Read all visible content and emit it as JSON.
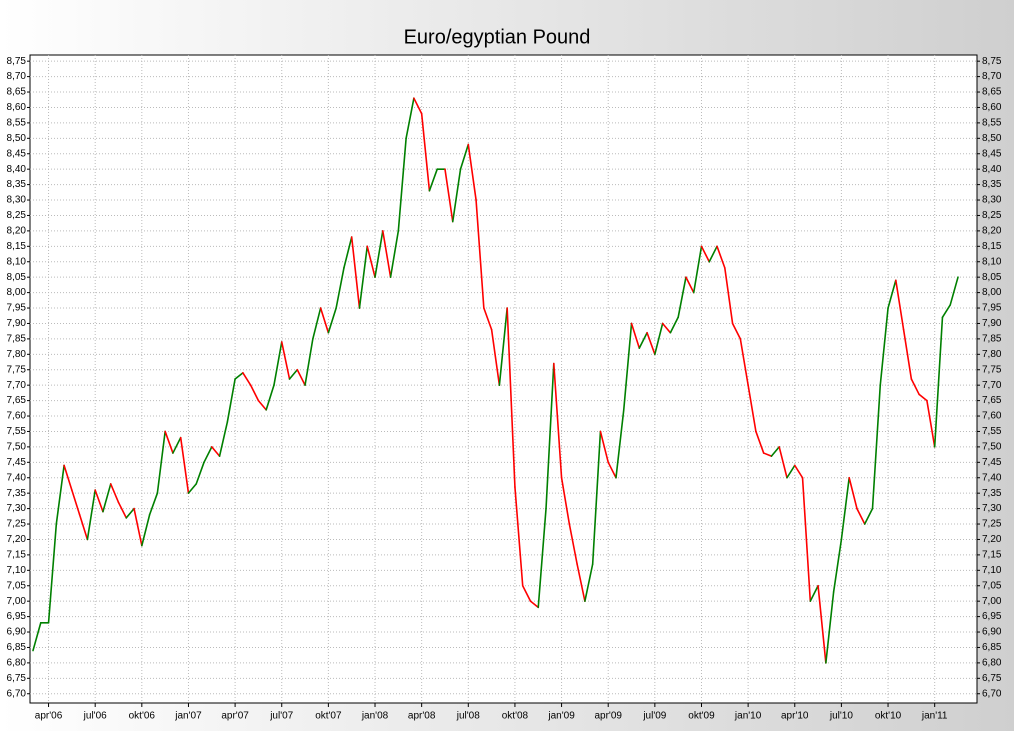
{
  "chart_data": {
    "type": "line",
    "title": "Euro/egyptian Pound",
    "categories": [
      null,
      null,
      "apr'06",
      null,
      null,
      null,
      null,
      null,
      "jul'06",
      null,
      null,
      null,
      null,
      null,
      "okt'06",
      null,
      null,
      null,
      null,
      null,
      "jan'07",
      null,
      null,
      null,
      null,
      null,
      "apr'07",
      null,
      null,
      null,
      null,
      null,
      "jul'07",
      null,
      null,
      null,
      null,
      null,
      "okt'07",
      null,
      null,
      null,
      null,
      null,
      "jan'08",
      null,
      null,
      null,
      null,
      null,
      "apr'08",
      null,
      null,
      null,
      null,
      null,
      "jul'08",
      null,
      null,
      null,
      null,
      null,
      "okt'08",
      null,
      null,
      null,
      null,
      null,
      "jan'09",
      null,
      null,
      null,
      null,
      null,
      "apr'09",
      null,
      null,
      null,
      null,
      null,
      "jul'09",
      null,
      null,
      null,
      null,
      null,
      "okt'09",
      null,
      null,
      null,
      null,
      null,
      "jan'10",
      null,
      null,
      null,
      null,
      null,
      "apr'10",
      null,
      null,
      null,
      null,
      null,
      "jul'10",
      null,
      null,
      null,
      null,
      null,
      "okt'10",
      null,
      null,
      null,
      null,
      null,
      "jan'11",
      null,
      null,
      null
    ],
    "series": [
      {
        "values": [
          6.84,
          6.93,
          6.93,
          7.25,
          7.44,
          7.36,
          7.28,
          7.2,
          7.36,
          7.29,
          7.38,
          7.32,
          7.27,
          7.3,
          7.18,
          7.28,
          7.35,
          7.55,
          7.48,
          7.53,
          7.35,
          7.38,
          7.45,
          7.5,
          7.47,
          7.58,
          7.72,
          7.74,
          7.7,
          7.65,
          7.62,
          7.7,
          7.84,
          7.72,
          7.75,
          7.7,
          7.85,
          7.95,
          7.87,
          7.95,
          8.08,
          8.18,
          7.95,
          8.15,
          8.05,
          8.2,
          8.05,
          8.2,
          8.5,
          8.63,
          8.58,
          8.33,
          8.4,
          8.4,
          8.23,
          8.4,
          8.48,
          8.3,
          7.95,
          7.88,
          7.7,
          7.95,
          7.37,
          7.05,
          7.0,
          6.98,
          7.3,
          7.77,
          7.4,
          7.25,
          7.12,
          7.0,
          7.12,
          7.55,
          7.45,
          7.4,
          7.62,
          7.9,
          7.82,
          7.87,
          7.8,
          7.9,
          7.87,
          7.92,
          8.05,
          8.0,
          8.15,
          8.1,
          8.15,
          8.08,
          7.9,
          7.85,
          7.7,
          7.55,
          7.48,
          7.47,
          7.5,
          7.4,
          7.44,
          7.4,
          7.0,
          7.05,
          6.8,
          7.03,
          7.2,
          7.4,
          7.3,
          7.25,
          7.3,
          7.7,
          7.95,
          8.04,
          7.88,
          7.72,
          7.67,
          7.65,
          7.5,
          7.92,
          7.96,
          8.05
        ]
      }
    ],
    "up_color": "#008000",
    "down_color": "#ff0000",
    "ylim": [
      6.67,
      8.77
    ],
    "yticks": [
      {
        "value": 6.7,
        "label": "6,70"
      },
      {
        "value": 6.75,
        "label": "6,75"
      },
      {
        "value": 6.8,
        "label": "6,80"
      },
      {
        "value": 6.85,
        "label": "6,85"
      },
      {
        "value": 6.9,
        "label": "6,90"
      },
      {
        "value": 6.95,
        "label": "6,95"
      },
      {
        "value": 7.0,
        "label": "7,00"
      },
      {
        "value": 7.05,
        "label": "7,05"
      },
      {
        "value": 7.1,
        "label": "7,10"
      },
      {
        "value": 7.15,
        "label": "7,15"
      },
      {
        "value": 7.2,
        "label": "7,20"
      },
      {
        "value": 7.25,
        "label": "7,25"
      },
      {
        "value": 7.3,
        "label": "7,30"
      },
      {
        "value": 7.35,
        "label": "7,35"
      },
      {
        "value": 7.4,
        "label": "7,40"
      },
      {
        "value": 7.45,
        "label": "7,45"
      },
      {
        "value": 7.5,
        "label": "7,50"
      },
      {
        "value": 7.55,
        "label": "7,55"
      },
      {
        "value": 7.6,
        "label": "7,60"
      },
      {
        "value": 7.65,
        "label": "7,65"
      },
      {
        "value": 7.7,
        "label": "7,70"
      },
      {
        "value": 7.75,
        "label": "7,75"
      },
      {
        "value": 7.8,
        "label": "7,80"
      },
      {
        "value": 7.85,
        "label": "7,85"
      },
      {
        "value": 7.9,
        "label": "7,90"
      },
      {
        "value": 7.95,
        "label": "7,95"
      },
      {
        "value": 8.0,
        "label": "8,00"
      },
      {
        "value": 8.05,
        "label": "8,05"
      },
      {
        "value": 8.1,
        "label": "8,10"
      },
      {
        "value": 8.15,
        "label": "8,15"
      },
      {
        "value": 8.2,
        "label": "8,20"
      },
      {
        "value": 8.25,
        "label": "8,25"
      },
      {
        "value": 8.3,
        "label": "8,30"
      },
      {
        "value": 8.35,
        "label": "8,35"
      },
      {
        "value": 8.4,
        "label": "8,40"
      },
      {
        "value": 8.45,
        "label": "8,45"
      },
      {
        "value": 8.5,
        "label": "8,50"
      },
      {
        "value": 8.55,
        "label": "8,55"
      },
      {
        "value": 8.6,
        "label": "8,60"
      },
      {
        "value": 8.65,
        "label": "8,65"
      },
      {
        "value": 8.7,
        "label": "8,70"
      },
      {
        "value": 8.75,
        "label": "8,75"
      }
    ],
    "grid": true
  }
}
